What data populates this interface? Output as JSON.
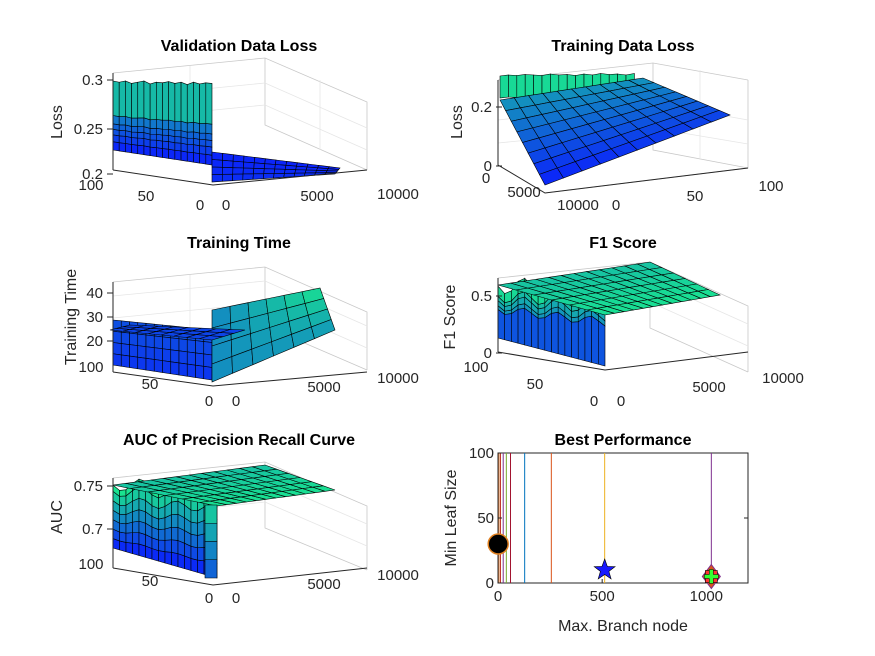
{
  "chart_data": [
    {
      "type": "surface",
      "title": "Validation Data Loss",
      "zlabel": "Loss",
      "xlabel": "",
      "ylabel": "",
      "zticks": [
        "0.2",
        "0.25",
        "0.3"
      ],
      "ticks_a": [
        "100",
        "50",
        "0"
      ],
      "ticks_b": [
        "0",
        "5000",
        "10000"
      ],
      "zlim": [
        0.2,
        0.31
      ],
      "grid": true
    },
    {
      "type": "surface",
      "title": "Training Data Loss",
      "zlabel": "Loss",
      "xlabel": "",
      "ylabel": "",
      "zticks": [
        "0",
        "0.2"
      ],
      "ticks_a": [
        "0",
        "5000",
        "10000"
      ],
      "ticks_b": [
        "0",
        "50",
        "100"
      ],
      "zlim": [
        0,
        0.3
      ],
      "grid": true
    },
    {
      "type": "surface",
      "title": "Training Time",
      "zlabel": "Training Time",
      "xlabel": "",
      "ylabel": "",
      "zticks": [
        "20",
        "30",
        "40"
      ],
      "ticks_a": [
        "100",
        "50",
        "0"
      ],
      "ticks_b": [
        "0",
        "5000",
        "10000"
      ],
      "zlim": [
        15,
        45
      ],
      "grid": true
    },
    {
      "type": "surface",
      "title": "F1 Score",
      "zlabel": "F1 Score",
      "xlabel": "",
      "ylabel": "",
      "zticks": [
        "0",
        "0.5"
      ],
      "ticks_a": [
        "100",
        "50",
        "0"
      ],
      "ticks_b": [
        "0",
        "5000",
        "10000"
      ],
      "zlim": [
        0,
        0.65
      ],
      "grid": true
    },
    {
      "type": "surface",
      "title": "AUC of Precision Recall Curve",
      "zlabel": "AUC",
      "xlabel": "",
      "ylabel": "",
      "zticks": [
        "0.7",
        "0.75"
      ],
      "ticks_a": [
        "100",
        "50",
        "0"
      ],
      "ticks_b": [
        "0",
        "5000",
        "10000"
      ],
      "zlim": [
        0.67,
        0.77
      ],
      "grid": true
    },
    {
      "type": "scatter",
      "title": "Best Performance",
      "xlabel": "Max. Branch node",
      "ylabel": "Min Leaf Size",
      "xlim": [
        0,
        1200
      ],
      "ylim": [
        0,
        100
      ],
      "xticks": [
        0,
        500,
        1000
      ],
      "yticks": [
        0,
        50,
        100
      ],
      "vlines": [
        {
          "x": 5,
          "color": "#e07b39"
        },
        {
          "x": 12,
          "color": "#c0392b"
        },
        {
          "x": 25,
          "color": "#7e2f8e"
        },
        {
          "x": 40,
          "color": "#77ac30"
        },
        {
          "x": 60,
          "color": "#a2142f"
        },
        {
          "x": 128,
          "color": "#0072bd"
        },
        {
          "x": 256,
          "color": "#d95319"
        },
        {
          "x": 512,
          "color": "#edb120"
        },
        {
          "x": 1024,
          "color": "#7e2f8e"
        }
      ],
      "points": [
        {
          "x": 1,
          "y": 30,
          "marker": "circle",
          "color": "#000000",
          "edge": "#e08020"
        },
        {
          "x": 512,
          "y": 10,
          "marker": "star",
          "color": "#1a1aff"
        },
        {
          "x": 1024,
          "y": 5,
          "marker": "diamond",
          "color": "#d9531e"
        },
        {
          "x": 1024,
          "y": 5,
          "marker": "square",
          "color": "#ff3333"
        },
        {
          "x": 1024,
          "y": 5,
          "marker": "cross",
          "color": "#33ff33"
        }
      ]
    }
  ]
}
